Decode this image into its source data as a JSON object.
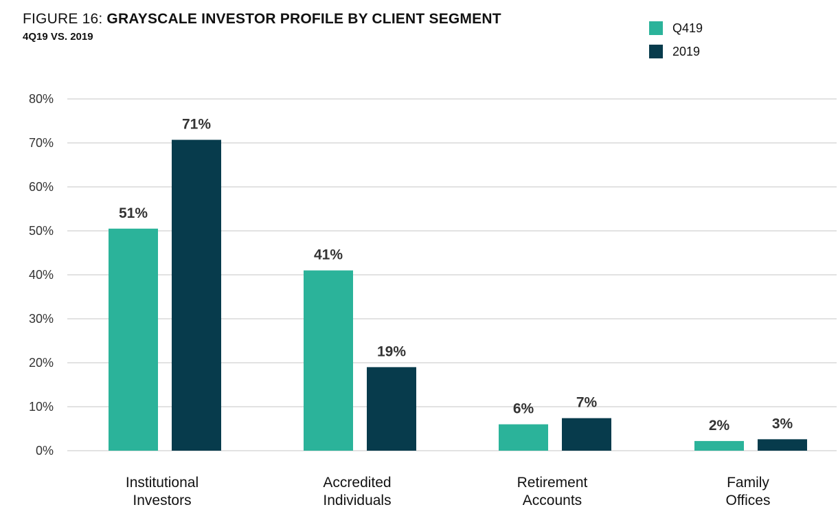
{
  "header": {
    "figure_label": "FIGURE 16: ",
    "title": "GRAYSCALE INVESTOR PROFILE BY CLIENT SEGMENT",
    "subtitle": "4Q19 VS. 2019"
  },
  "colors": {
    "q419": "#2bb39a",
    "y2019": "#073b4c",
    "grid": "#d9d9d9"
  },
  "chart_data": {
    "type": "bar",
    "title": "GRAYSCALE INVESTOR PROFILE BY CLIENT SEGMENT",
    "subtitle": "4Q19 VS. 2019",
    "categories": [
      [
        "Institutional",
        "Investors"
      ],
      [
        "Accredited",
        "Individuals"
      ],
      [
        "Retirement",
        "Accounts"
      ],
      [
        "Family",
        "Offices"
      ]
    ],
    "series": [
      {
        "name": "Q419",
        "values": [
          50.5,
          41,
          6,
          2.2
        ],
        "labels": [
          "51%",
          "41%",
          "6%",
          "2%"
        ]
      },
      {
        "name": "2019",
        "values": [
          70.7,
          19,
          7.4,
          2.6
        ],
        "labels": [
          "71%",
          "19%",
          "7%",
          "3%"
        ]
      }
    ],
    "yticks": [
      "0%",
      "10%",
      "20%",
      "30%",
      "40%",
      "50%",
      "60%",
      "70%",
      "80%"
    ],
    "ylim": [
      0,
      80
    ],
    "grid": true,
    "legend": "top-right"
  }
}
